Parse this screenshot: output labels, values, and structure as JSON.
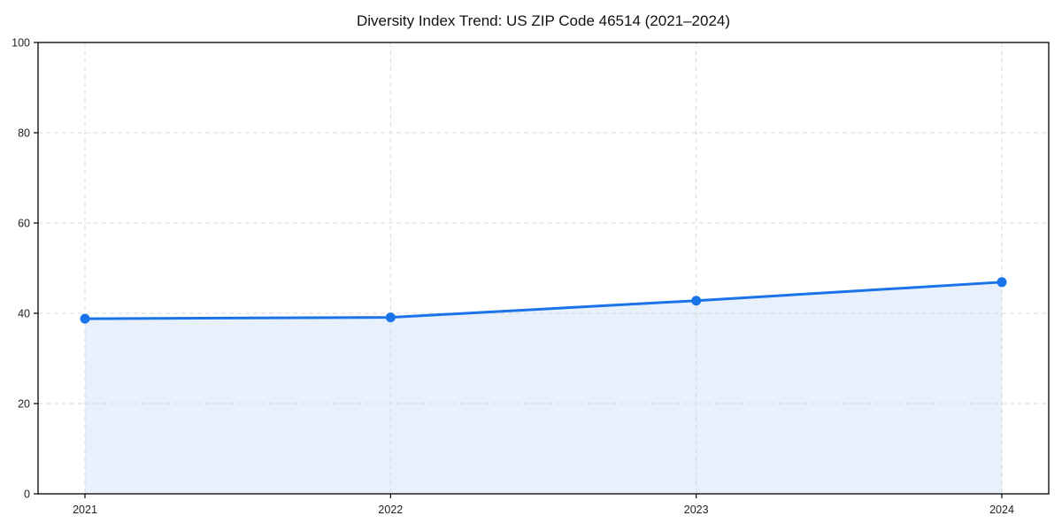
{
  "figure": {
    "background": "#ffffff"
  },
  "chart_data": {
    "type": "line",
    "title": "Diversity Index Trend: US ZIP Code 46514 (2021–2024)",
    "categories": [
      "2021",
      "2022",
      "2023",
      "2024"
    ],
    "series": [
      {
        "name": "Diversity Index",
        "values": [
          38.8,
          39.1,
          42.8,
          46.9
        ]
      }
    ],
    "xlabel": "",
    "ylabel": "",
    "ylim": [
      0,
      100
    ],
    "y_ticks": [
      0,
      20,
      40,
      60,
      80,
      100
    ],
    "grid": "dashed",
    "legend_position": "none",
    "area_fill": true,
    "marker": "circle",
    "colors": {
      "line": "#1a73e8",
      "marker": "#1a73e8",
      "area_fill": "#e8f0fc",
      "grid": "#d9d9d9",
      "axis": "#000000",
      "tick_label": "#222222",
      "title": "#111111"
    }
  }
}
